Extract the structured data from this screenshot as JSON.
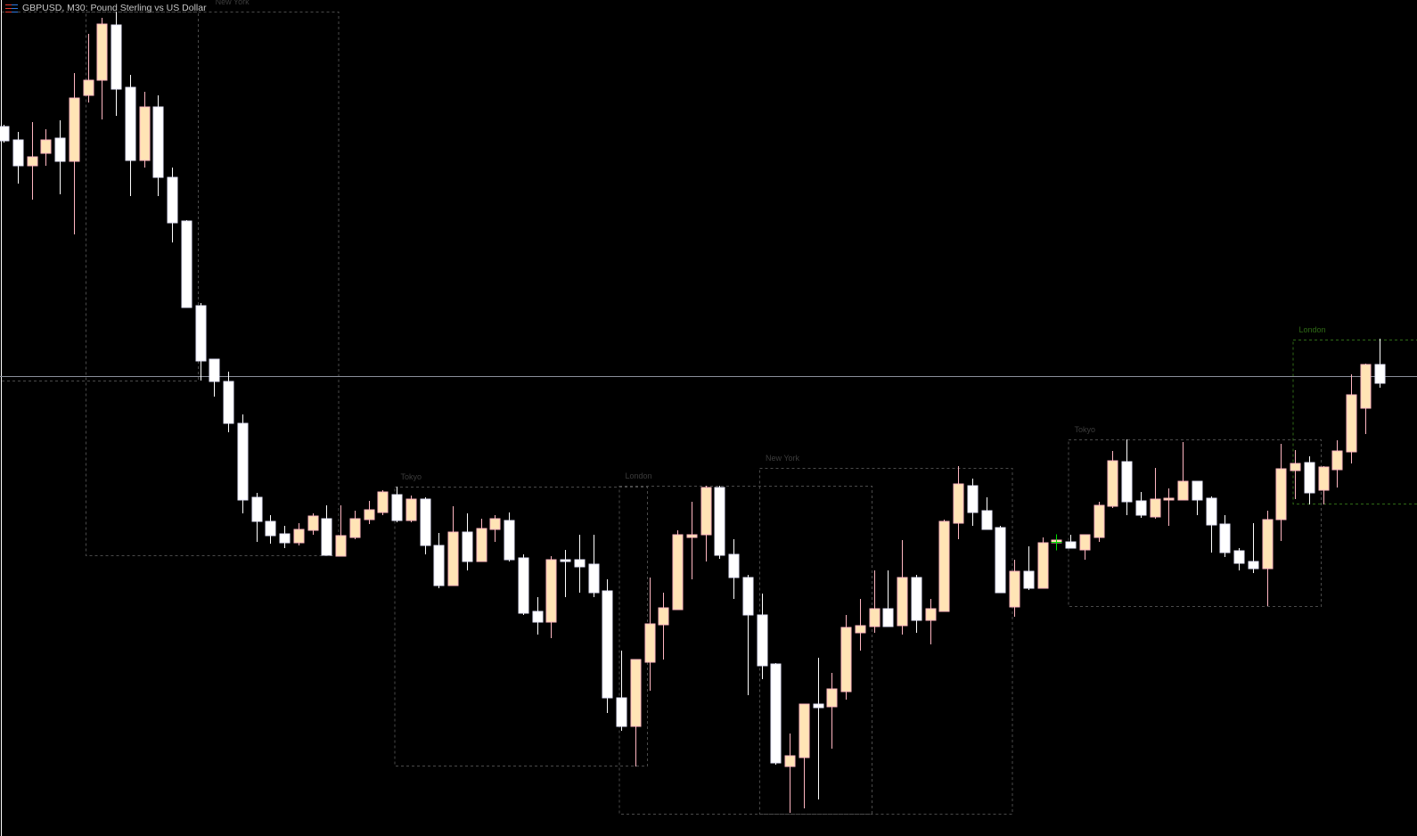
{
  "header": {
    "symbol_title": "GBPUSD, M30:  Pound Sterling vs US Dollar",
    "icon": "chart-window-icon"
  },
  "colors": {
    "background": "#000000",
    "bull_body": "#ffe4b5",
    "bull_outline": "#ffb6c1",
    "bear_body": "#ffffff",
    "bear_outline": "#e6e6fa",
    "price_line": "#8a8f9a",
    "session_box": "#4a4a4a",
    "session_label": "#3c3c3c",
    "active_session": "#2f6a16",
    "crosshair": "#00e000"
  },
  "chart_data": {
    "type": "candlestick",
    "title": "GBPUSD, M30:  Pound Sterling vs US Dollar",
    "value_note": "",
    "ylim": [
      0,
      93.8
    ],
    "grid": false,
    "candles_ohlc": [
      [
        79.6,
        79.8,
        77.8,
        78.0
      ],
      [
        78.1,
        79.0,
        73.2,
        75.2
      ],
      [
        75.2,
        80.1,
        71.4,
        76.2
      ],
      [
        76.6,
        79.3,
        75.2,
        78.1
      ],
      [
        78.3,
        80.3,
        72.0,
        75.7
      ],
      [
        75.7,
        85.6,
        67.5,
        82.8
      ],
      [
        83.1,
        90.0,
        82.3,
        84.8
      ],
      [
        84.8,
        91.8,
        80.4,
        91.1
      ],
      [
        91.0,
        92.5,
        80.8,
        83.8
      ],
      [
        84.0,
        85.4,
        71.8,
        75.8
      ],
      [
        75.8,
        83.5,
        75.0,
        81.8
      ],
      [
        81.8,
        83.1,
        71.8,
        73.9
      ],
      [
        73.9,
        75.0,
        66.6,
        68.8
      ],
      [
        69.0,
        69.1,
        59.3,
        59.3
      ],
      [
        59.5,
        59.8,
        51.1,
        53.3
      ],
      [
        53.5,
        53.5,
        49.3,
        51.0
      ],
      [
        51.0,
        52.1,
        45.3,
        46.3
      ],
      [
        46.3,
        47.3,
        36.2,
        37.7
      ],
      [
        38.0,
        38.5,
        33.0,
        35.3
      ],
      [
        35.3,
        36.0,
        32.8,
        33.7
      ],
      [
        33.9,
        34.8,
        32.3,
        32.9
      ],
      [
        32.9,
        35.1,
        32.6,
        34.4
      ],
      [
        34.3,
        36.2,
        33.8,
        35.9
      ],
      [
        35.6,
        37.1,
        31.5,
        31.5
      ],
      [
        31.4,
        37.1,
        31.4,
        33.7
      ],
      [
        33.5,
        36.5,
        33.3,
        35.6
      ],
      [
        35.5,
        37.6,
        35.0,
        36.6
      ],
      [
        36.3,
        38.8,
        36.0,
        38.6
      ],
      [
        38.3,
        39.2,
        35.2,
        35.4
      ],
      [
        35.4,
        38.2,
        35.2,
        37.8
      ],
      [
        37.8,
        38.0,
        31.6,
        32.6
      ],
      [
        32.6,
        34.0,
        27.8,
        28.1
      ],
      [
        28.1,
        37.0,
        28.1,
        34.1
      ],
      [
        34.1,
        36.2,
        29.8,
        30.8
      ],
      [
        30.8,
        35.6,
        30.8,
        34.5
      ],
      [
        34.4,
        36.0,
        33.0,
        35.6
      ],
      [
        35.4,
        36.3,
        30.8,
        31.0
      ],
      [
        31.2,
        31.6,
        24.8,
        25.0
      ],
      [
        25.2,
        26.8,
        22.6,
        24.0
      ],
      [
        24.0,
        31.4,
        22.2,
        31.0
      ],
      [
        31.0,
        32.1,
        26.8,
        30.8
      ],
      [
        31.0,
        33.8,
        27.3,
        30.2
      ],
      [
        30.5,
        33.8,
        26.8,
        27.3
      ],
      [
        27.5,
        28.8,
        13.8,
        15.5
      ],
      [
        15.5,
        20.8,
        11.8,
        12.3
      ],
      [
        12.3,
        19.8,
        7.8,
        19.8
      ],
      [
        19.5,
        29.0,
        16.3,
        23.8
      ],
      [
        23.7,
        27.3,
        19.8,
        25.6
      ],
      [
        25.4,
        34.3,
        25.4,
        33.8
      ],
      [
        33.5,
        37.5,
        28.8,
        33.8
      ],
      [
        33.8,
        39.3,
        30.8,
        39.1
      ],
      [
        39.1,
        39.3,
        31.1,
        31.5
      ],
      [
        31.6,
        33.3,
        26.6,
        29.0
      ],
      [
        29.0,
        29.3,
        15.8,
        24.8
      ],
      [
        24.8,
        27.2,
        17.6,
        19.1
      ],
      [
        19.3,
        19.4,
        8.0,
        8.2
      ],
      [
        7.8,
        11.5,
        2.6,
        9.0
      ],
      [
        8.8,
        14.8,
        3.1,
        14.8
      ],
      [
        14.8,
        20.0,
        4.1,
        14.4
      ],
      [
        14.5,
        18.3,
        9.8,
        16.5
      ],
      [
        16.2,
        24.8,
        15.3,
        23.4
      ],
      [
        22.8,
        26.6,
        20.8,
        23.6
      ],
      [
        23.5,
        29.8,
        22.8,
        25.5
      ],
      [
        25.5,
        29.8,
        23.5,
        23.5
      ],
      [
        23.6,
        33.2,
        22.6,
        29.0
      ],
      [
        29.0,
        29.3,
        22.8,
        24.2
      ],
      [
        24.2,
        26.6,
        21.5,
        25.5
      ],
      [
        25.2,
        35.5,
        25.2,
        35.3
      ],
      [
        35.1,
        41.5,
        33.3,
        39.5
      ],
      [
        39.3,
        40.1,
        34.8,
        36.3
      ],
      [
        36.5,
        38.0,
        34.4,
        34.4
      ],
      [
        34.6,
        34.8,
        27.3,
        27.3
      ],
      [
        25.7,
        31.0,
        24.6,
        29.7
      ],
      [
        29.7,
        32.5,
        27.6,
        27.8
      ],
      [
        27.8,
        33.5,
        27.8,
        32.9
      ],
      [
        32.9,
        33.8,
        32.6,
        33.2
      ],
      [
        33.0,
        33.8,
        32.3,
        32.3
      ],
      [
        32.1,
        33.8,
        31.0,
        33.8
      ],
      [
        33.5,
        37.5,
        33.0,
        37.1
      ],
      [
        37.0,
        43.2,
        36.8,
        42.1
      ],
      [
        42.0,
        44.5,
        36.0,
        37.5
      ],
      [
        37.6,
        38.6,
        35.7,
        36.0
      ],
      [
        35.8,
        41.3,
        35.6,
        37.8
      ],
      [
        37.7,
        39.0,
        34.8,
        37.9
      ],
      [
        37.7,
        44.2,
        37.7,
        39.8
      ],
      [
        39.8,
        39.8,
        36.0,
        37.7
      ],
      [
        37.9,
        38.1,
        31.8,
        34.9
      ],
      [
        35.0,
        36.0,
        31.3,
        31.8
      ],
      [
        32.0,
        32.3,
        29.8,
        30.6
      ],
      [
        30.8,
        35.1,
        29.5,
        30.0
      ],
      [
        30.0,
        36.5,
        25.8,
        35.5
      ],
      [
        35.5,
        44.0,
        33.1,
        41.2
      ],
      [
        41.0,
        43.3,
        37.8,
        41.8
      ],
      [
        41.9,
        42.6,
        37.2,
        38.5
      ],
      [
        38.8,
        41.5,
        37.2,
        41.4
      ],
      [
        41.1,
        44.4,
        39.1,
        43.2
      ],
      [
        43.1,
        51.8,
        41.8,
        49.5
      ],
      [
        48.0,
        53.0,
        45.1,
        52.9
      ],
      [
        52.9,
        55.8,
        50.3,
        50.8
      ]
    ],
    "price_line": 51.6,
    "sessions": [
      {
        "label": "",
        "from": -8,
        "to": 14,
        "high": 92.5,
        "low": 51.1,
        "active": false
      },
      {
        "label": "New York",
        "from": 6,
        "to": 24,
        "high": 92.5,
        "low": 31.5,
        "active": false
      },
      {
        "label": "Tokyo",
        "from": 28,
        "to": 46,
        "high": 39.2,
        "low": 7.9,
        "active": false
      },
      {
        "label": "London",
        "from": 44,
        "to": 62,
        "high": 39.3,
        "low": 2.5,
        "active": false
      },
      {
        "label": "New York",
        "from": 54,
        "to": 72,
        "high": 41.3,
        "low": 2.5,
        "active": false
      },
      {
        "label": "Tokyo",
        "from": 76,
        "to": 94,
        "high": 44.5,
        "low": 25.8,
        "active": false
      },
      {
        "label": "London",
        "from": 92,
        "to": 110,
        "high": 55.7,
        "low": 37.3,
        "active": true
      }
    ],
    "crosshair": {
      "candle": 75,
      "value": 33.0
    }
  }
}
